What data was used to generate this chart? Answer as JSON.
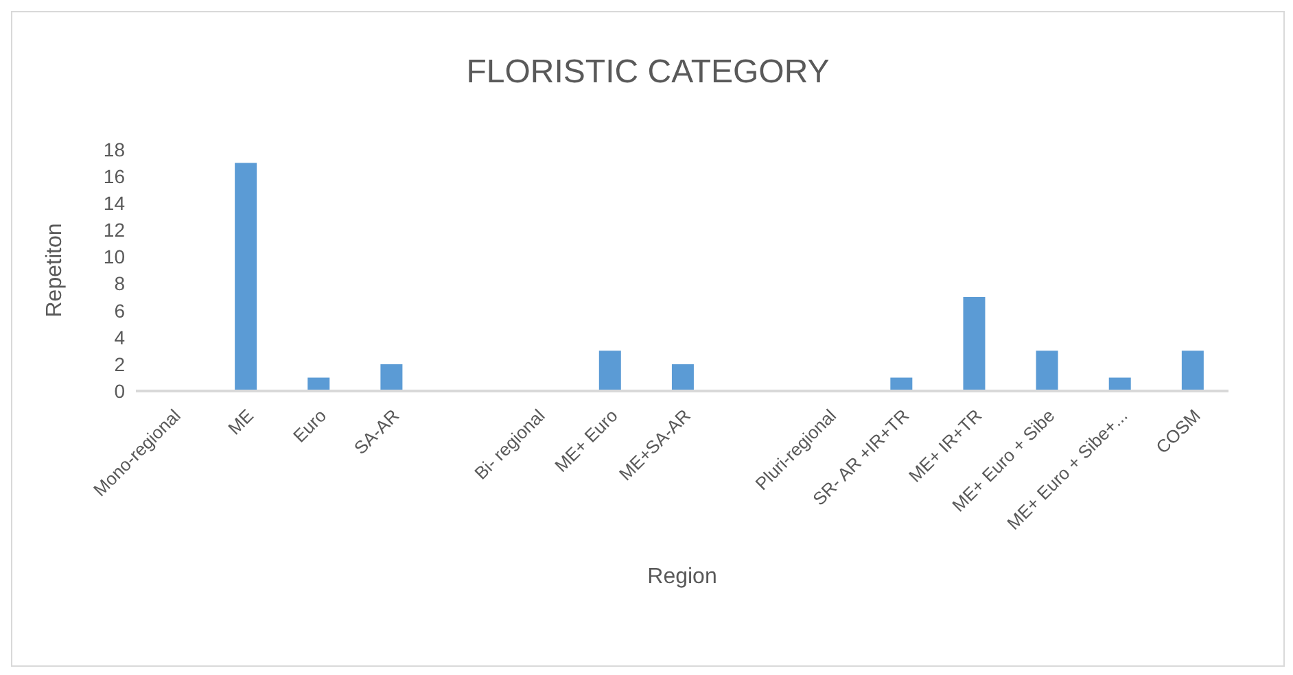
{
  "chart_data": {
    "type": "bar",
    "title": "FLORISTIC CATEGORY",
    "xlabel": "Region",
    "ylabel": "Repetiton",
    "categories": [
      "Mono-regional",
      "ME",
      "Euro",
      "SA-AR",
      null,
      "Bi- regional",
      "ME+ Euro",
      "ME+SA-AR",
      null,
      "Pluri-regional",
      "SR- AR +IR+TR",
      "ME+ IR+TR",
      "ME+ Euro + Sibe",
      "ME+ Euro + Sibe+...",
      "COSM"
    ],
    "values": [
      null,
      17,
      1,
      2,
      null,
      null,
      3,
      2,
      null,
      null,
      1,
      7,
      3,
      1,
      3
    ],
    "color": "#5b9bd5",
    "ylim": [
      0,
      18
    ],
    "yticks": [
      0,
      2,
      4,
      6,
      8,
      10,
      12,
      14,
      16,
      18
    ],
    "grid": false
  }
}
